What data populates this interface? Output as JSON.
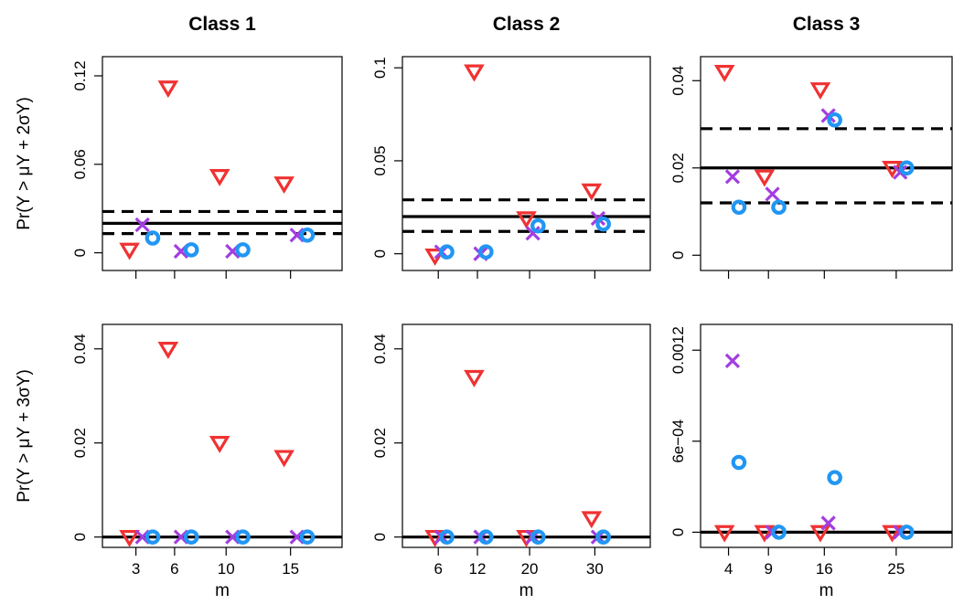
{
  "colors": {
    "triangle": "#f03232",
    "cross": "#a23ee0",
    "circle": "#2196f3",
    "reference": "#000000"
  },
  "ylabels": [
    "Pr(Y > μY + 2σY)",
    "Pr(Y > μY + 3σY)"
  ],
  "chart_data": [
    {
      "type": "scatter",
      "row": 0,
      "col": 0,
      "title": "Class 1",
      "xlabel": "",
      "ylabel": "Pr(Y > μY + 2σY)",
      "m": [
        3,
        6,
        10,
        15
      ],
      "xlim": [
        0.4,
        19
      ],
      "ylim": [
        -0.012,
        0.133
      ],
      "yticks": [
        0,
        0.06,
        0.12
      ],
      "ytick_labels": [
        "0",
        "0.06",
        "0.12"
      ],
      "hline": 0.02,
      "band": [
        0.013,
        0.028
      ],
      "series": [
        {
          "marker": "triangle",
          "values": [
            0.002,
            0.112,
            0.052,
            0.047
          ]
        },
        {
          "marker": "cross",
          "values": [
            0.019,
            0.001,
            0.001,
            0.012
          ]
        },
        {
          "marker": "circle",
          "values": [
            0.01,
            0.002,
            0.002,
            0.012
          ]
        }
      ]
    },
    {
      "type": "scatter",
      "row": 0,
      "col": 1,
      "title": "Class 2",
      "xlabel": "",
      "ylabel": "",
      "m": [
        6,
        12,
        20,
        30
      ],
      "xlim": [
        0.5,
        38.5
      ],
      "ylim": [
        -0.009,
        0.106
      ],
      "yticks": [
        0,
        0.05,
        0.1
      ],
      "ytick_labels": [
        "0",
        "0.05",
        "0.1"
      ],
      "hline": 0.02,
      "band": [
        0.012,
        0.029
      ],
      "series": [
        {
          "marker": "triangle",
          "values": [
            -0.001,
            0.098,
            0.019,
            0.034
          ]
        },
        {
          "marker": "cross",
          "values": [
            0.001,
            0.0,
            0.011,
            0.019
          ]
        },
        {
          "marker": "circle",
          "values": [
            0.001,
            0.001,
            0.015,
            0.016
          ]
        }
      ]
    },
    {
      "type": "scatter",
      "row": 0,
      "col": 2,
      "title": "Class 3",
      "xlabel": "",
      "ylabel": "",
      "m": [
        4,
        9,
        16,
        25
      ],
      "xlim": [
        0.5,
        32
      ],
      "ylim": [
        -0.0035,
        0.0455
      ],
      "yticks": [
        0,
        0.02,
        0.04
      ],
      "ytick_labels": [
        "0",
        "0.02",
        "0.04"
      ],
      "hline": 0.02,
      "band": [
        0.012,
        0.029
      ],
      "series": [
        {
          "marker": "triangle",
          "values": [
            0.042,
            0.018,
            0.038,
            0.02
          ]
        },
        {
          "marker": "cross",
          "values": [
            0.018,
            0.014,
            0.032,
            0.019
          ]
        },
        {
          "marker": "circle",
          "values": [
            0.011,
            0.011,
            0.031,
            0.02
          ]
        }
      ]
    },
    {
      "type": "scatter",
      "row": 1,
      "col": 0,
      "title": "",
      "xlabel": "m",
      "ylabel": "Pr(Y > μY + 3σY)",
      "m": [
        3,
        6,
        10,
        15
      ],
      "xlim": [
        0.4,
        19
      ],
      "ylim": [
        -0.0022,
        0.0452
      ],
      "yticks": [
        0,
        0.02,
        0.04
      ],
      "ytick_labels": [
        "0",
        "0.02",
        "0.04"
      ],
      "xticks": [
        3,
        6,
        10,
        15
      ],
      "xtick_labels": [
        "3",
        "6",
        "10",
        "15"
      ],
      "hline": 0.0,
      "band": [
        0.0,
        0.0
      ],
      "series": [
        {
          "marker": "triangle",
          "values": [
            0.0,
            0.04,
            0.02,
            0.017
          ]
        },
        {
          "marker": "cross",
          "values": [
            0.0,
            0.0,
            0.0,
            0.0
          ]
        },
        {
          "marker": "circle",
          "values": [
            0.0,
            0.0,
            0.0,
            0.0
          ]
        }
      ]
    },
    {
      "type": "scatter",
      "row": 1,
      "col": 1,
      "title": "",
      "xlabel": "m",
      "ylabel": "",
      "m": [
        6,
        12,
        20,
        30
      ],
      "xlim": [
        0.5,
        38.5
      ],
      "ylim": [
        -0.0022,
        0.0452
      ],
      "yticks": [
        0,
        0.02,
        0.04
      ],
      "ytick_labels": [
        "0",
        "0.02",
        "0.04"
      ],
      "xticks": [
        6,
        12,
        20,
        30
      ],
      "xtick_labels": [
        "6",
        "12",
        "20",
        "30"
      ],
      "hline": 0.0,
      "band": [
        0.0,
        0.0
      ],
      "series": [
        {
          "marker": "triangle",
          "values": [
            0.0,
            0.034,
            0.0,
            0.004
          ]
        },
        {
          "marker": "cross",
          "values": [
            0.0,
            0.0,
            0.0,
            0.0
          ]
        },
        {
          "marker": "circle",
          "values": [
            0.0,
            0.0,
            0.0,
            0.0
          ]
        }
      ]
    },
    {
      "type": "scatter",
      "row": 1,
      "col": 2,
      "title": "",
      "xlabel": "m",
      "ylabel": "",
      "m": [
        4,
        9,
        16,
        25
      ],
      "xlim": [
        0.5,
        32
      ],
      "ylim": [
        -0.0001,
        0.00137
      ],
      "yticks": [
        0,
        0.0006,
        0.0012
      ],
      "ytick_labels": [
        "0",
        "6e−04",
        "0.0012"
      ],
      "xticks": [
        4,
        9,
        16,
        25
      ],
      "xtick_labels": [
        "4",
        "9",
        "16",
        "25"
      ],
      "hline": 0.0,
      "band": [
        0.0,
        0.0
      ],
      "series": [
        {
          "marker": "triangle",
          "values": [
            0.0,
            0.0,
            0.0,
            0.0
          ]
        },
        {
          "marker": "cross",
          "values": [
            0.00113,
            0.0,
            6e-05,
            0.0
          ]
        },
        {
          "marker": "circle",
          "values": [
            0.00046,
            0.0,
            0.00036,
            0.0
          ]
        }
      ]
    }
  ]
}
